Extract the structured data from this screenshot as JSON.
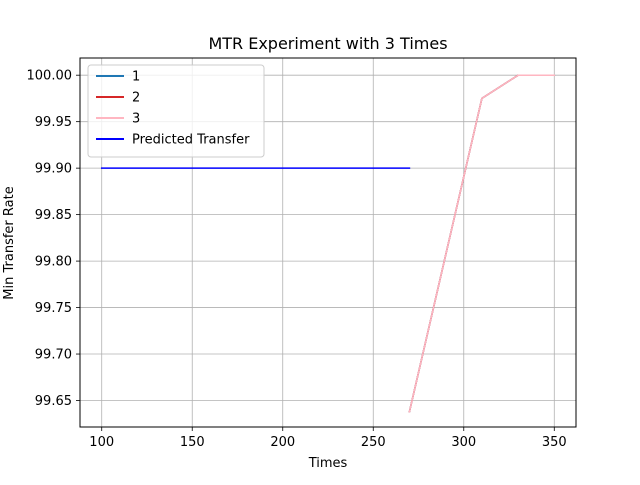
{
  "chart_data": {
    "type": "line",
    "title": "MTR Experiment with 3 Times",
    "xlabel": "Times",
    "ylabel": "Min Transfer Rate",
    "xlim": [
      88,
      362
    ],
    "ylim": [
      99.6215,
      100.0185
    ],
    "xticks": [
      100,
      150,
      200,
      250,
      300,
      350
    ],
    "xtick_labels": [
      "100",
      "150",
      "200",
      "250",
      "300",
      "350"
    ],
    "yticks": [
      99.65,
      99.7,
      99.75,
      99.8,
      99.85,
      99.9,
      99.95,
      100.0
    ],
    "ytick_labels": [
      "99.65",
      "99.70",
      "99.75",
      "99.80",
      "99.85",
      "99.90",
      "99.95",
      "100.00"
    ],
    "grid": true,
    "legend_position": "upper-left",
    "series": [
      {
        "name": "1",
        "color": "#1f77b4",
        "x": [
          270,
          310,
          330,
          350
        ],
        "y": [
          99.638,
          99.975,
          100.0,
          100.0
        ]
      },
      {
        "name": "2",
        "color": "#d62728",
        "x": [
          270,
          310,
          330,
          350
        ],
        "y": [
          99.638,
          99.975,
          100.0,
          100.0
        ]
      },
      {
        "name": "3",
        "color": "#ffb6c1",
        "x": [
          270,
          310,
          330,
          350
        ],
        "y": [
          99.638,
          99.975,
          100.0,
          100.0
        ]
      },
      {
        "name": "Predicted Transfer",
        "color": "#0000ff",
        "x": [
          100,
          270
        ],
        "y": [
          99.9,
          99.9
        ]
      }
    ]
  }
}
